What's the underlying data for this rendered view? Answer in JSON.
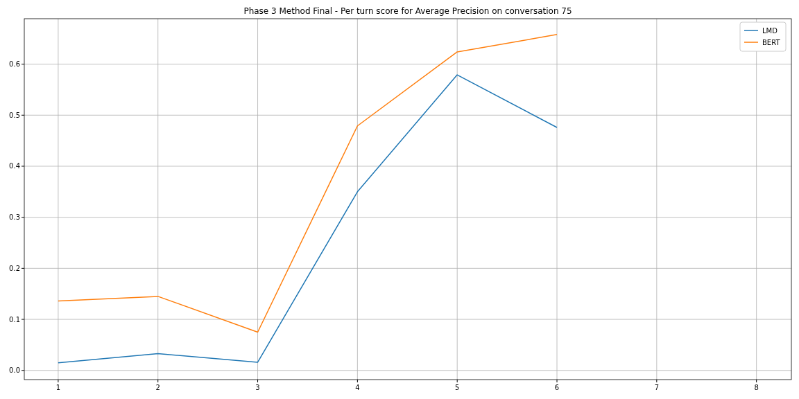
{
  "chart_data": {
    "type": "line",
    "title": "Phase 3 Method Final - Per turn score for Average Precision on conversation 75",
    "x": [
      1,
      2,
      3,
      4,
      5,
      6
    ],
    "series": [
      {
        "name": "LMD",
        "color": "#1f77b4",
        "values": [
          0.015,
          0.033,
          0.016,
          0.35,
          0.579,
          0.476
        ]
      },
      {
        "name": "BERT",
        "color": "#ff7f0e",
        "values": [
          0.136,
          0.145,
          0.075,
          0.479,
          0.624,
          0.658
        ]
      }
    ],
    "xlim": [
      0.66,
      8.35
    ],
    "xticks": [
      1,
      2,
      3,
      4,
      5,
      6,
      7,
      8
    ],
    "ylim": [
      -0.018,
      0.689
    ],
    "yticks": [
      {
        "value": 0,
        "label": "0.0"
      },
      {
        "value": 0.1,
        "label": "0.1"
      },
      {
        "value": 0.2,
        "label": "0.2"
      },
      {
        "value": 0.3,
        "label": "0.3"
      },
      {
        "value": 0.4,
        "label": "0.4"
      },
      {
        "value": 0.5,
        "label": "0.5"
      },
      {
        "value": 0.6,
        "label": "0.6"
      }
    ],
    "grid": true,
    "legend": "top right",
    "line_style": "solid"
  }
}
